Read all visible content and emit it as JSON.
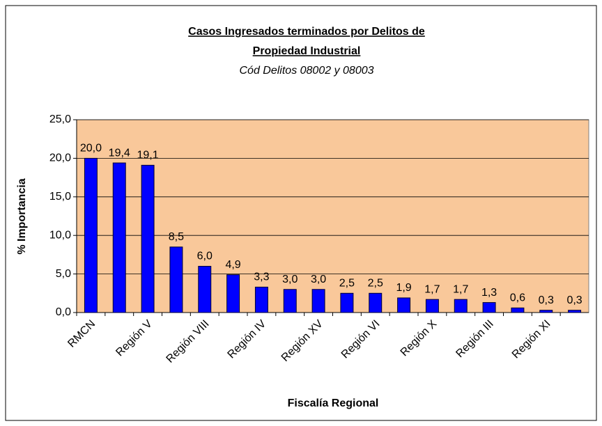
{
  "chart_data": {
    "type": "bar",
    "title": [
      "Casos Ingresados terminados por Delitos de",
      "Propiedad Industrial"
    ],
    "subtitle": "Cód Delitos 08002 y 08003",
    "y_label": "% Importancia",
    "x_label": "Fiscalía Regional",
    "categories": [
      "RMCN",
      null,
      "Región V",
      null,
      "Región VIII",
      null,
      "Región IV",
      null,
      "Región XV",
      null,
      "Región VI",
      null,
      "Región X",
      null,
      "Región III",
      null,
      "Región XI",
      null
    ],
    "values": [
      20.0,
      19.4,
      19.1,
      8.5,
      6.0,
      4.9,
      3.3,
      3.0,
      3.0,
      2.5,
      2.5,
      1.9,
      1.7,
      1.7,
      1.3,
      0.6,
      0.3,
      0.3
    ],
    "value_labels": [
      "20,0",
      "19,4",
      "19,1",
      "8,5",
      "6,0",
      "4,9",
      "3,3",
      "3,0",
      "3,0",
      "2,5",
      "2,5",
      "1,9",
      "1,7",
      "1,7",
      "1,3",
      "0,6",
      "0,3",
      "0,3"
    ],
    "color": "#0000ff",
    "background": "#f9c89a",
    "ylim": [
      0,
      25
    ],
    "yticks": [
      {
        "value": 0,
        "label": "0,0"
      },
      {
        "value": 5,
        "label": "5,0"
      },
      {
        "value": 10,
        "label": "10,0"
      },
      {
        "value": 15,
        "label": "15,0"
      },
      {
        "value": 20,
        "label": "20,0"
      },
      {
        "value": 25,
        "label": "25,0"
      }
    ],
    "grid": true
  }
}
